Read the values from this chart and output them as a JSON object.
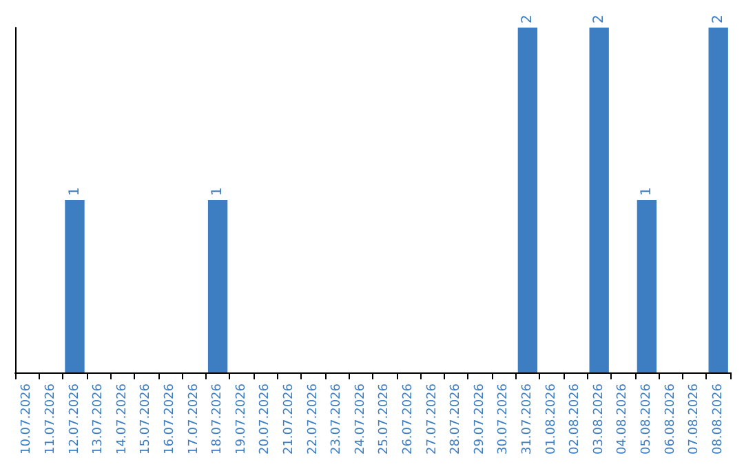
{
  "chart_data": {
    "type": "bar",
    "categories": [
      "10.07.2026",
      "11.07.2026",
      "12.07.2026",
      "13.07.2026",
      "14.07.2026",
      "15.07.2026",
      "16.07.2026",
      "17.07.2026",
      "18.07.2026",
      "19.07.2026",
      "20.07.2026",
      "21.07.2026",
      "22.07.2026",
      "23.07.2026",
      "24.07.2026",
      "25.07.2026",
      "26.07.2026",
      "27.07.2026",
      "28.07.2026",
      "29.07.2026",
      "30.07.2026",
      "31.07.2026",
      "01.08.2026",
      "02.08.2026",
      "03.08.2026",
      "04.08.2026",
      "05.08.2026",
      "06.08.2026",
      "07.08.2026",
      "08.08.2026"
    ],
    "values": [
      0,
      0,
      1,
      0,
      0,
      0,
      0,
      0,
      1,
      0,
      0,
      0,
      0,
      0,
      0,
      0,
      0,
      0,
      0,
      0,
      0,
      2,
      0,
      0,
      2,
      0,
      1,
      0,
      0,
      2
    ],
    "value_labels": [
      null,
      null,
      "1",
      null,
      null,
      null,
      null,
      null,
      "1",
      null,
      null,
      null,
      null,
      null,
      null,
      null,
      null,
      null,
      null,
      null,
      null,
      "2",
      null,
      null,
      "2",
      null,
      "1",
      null,
      null,
      "2"
    ],
    "color": "#3d7ec2",
    "grid": false,
    "tick_labels": "x"
  }
}
